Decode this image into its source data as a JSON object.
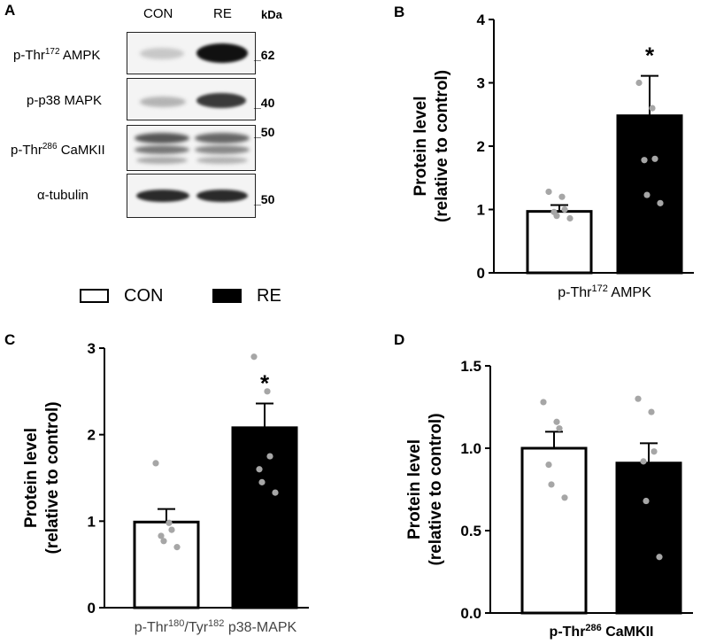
{
  "panel_a": {
    "letter": "A",
    "columns": [
      "CON",
      "RE"
    ],
    "kda_header": "kDa",
    "rows": [
      {
        "label_pre": "p-Thr",
        "label_sup": "172",
        "label_post": " AMPK",
        "kda": "_62"
      },
      {
        "label_pre": "p-p38 MAPK",
        "label_sup": "",
        "label_post": "",
        "kda": "_40"
      },
      {
        "label_pre": "p-Thr",
        "label_sup": "286",
        "label_post": " CaMKII",
        "kda": "_50"
      },
      {
        "label_pre": "α-tubulin",
        "label_sup": "",
        "label_post": "",
        "kda": "_50"
      }
    ]
  },
  "legend": {
    "con": "CON",
    "re": "RE"
  },
  "colors": {
    "con_fill": "#ffffff",
    "re_fill": "#000000",
    "dot": "#a6a6a6"
  },
  "ylabel_line1": "Protein level",
  "ylabel_line2": "(relative to control)",
  "chart_data": [
    {
      "panel": "B",
      "type": "bar",
      "categories": [
        "CON",
        "RE"
      ],
      "values": [
        0.97,
        2.48
      ],
      "errors": [
        0.1,
        0.63
      ],
      "points": [
        [
          1.28,
          1.2,
          1.0,
          0.96,
          0.9,
          0.86
        ],
        [
          3.0,
          2.6,
          1.8,
          1.78,
          1.23,
          1.1
        ]
      ],
      "ylim": [
        0,
        4
      ],
      "yticks": [
        0,
        1,
        2,
        3,
        4
      ],
      "ytick_labels": [
        "0",
        "1",
        "2",
        "3",
        "4"
      ],
      "xlabel_pre": "p-Thr",
      "xlabel_sup": "172",
      "xlabel_post": " AMPK",
      "significance": "*"
    },
    {
      "panel": "C",
      "type": "bar",
      "categories": [
        "CON",
        "RE"
      ],
      "values": [
        0.99,
        2.08
      ],
      "errors": [
        0.15,
        0.28
      ],
      "points": [
        [
          1.67,
          0.98,
          0.9,
          0.83,
          0.77,
          0.7
        ],
        [
          2.9,
          2.5,
          1.75,
          1.6,
          1.45,
          1.33
        ]
      ],
      "ylim": [
        0,
        3
      ],
      "yticks": [
        0,
        1,
        2,
        3
      ],
      "ytick_labels": [
        "0",
        "1",
        "2",
        "3"
      ],
      "xlabel_pre": "p-Thr",
      "xlabel_sup": "180",
      "xlabel_mid": "/Tyr",
      "xlabel_sup2": "182",
      "xlabel_post": " p38-MAPK",
      "significance": "*"
    },
    {
      "panel": "D",
      "type": "bar",
      "categories": [
        "CON",
        "RE"
      ],
      "values": [
        1.0,
        0.91
      ],
      "errors": [
        0.1,
        0.12
      ],
      "points": [
        [
          1.28,
          1.16,
          1.12,
          0.9,
          0.78,
          0.7
        ],
        [
          1.3,
          1.22,
          0.98,
          0.92,
          0.68,
          0.34
        ]
      ],
      "ylim": [
        0,
        1.5
      ],
      "yticks": [
        0,
        0.5,
        1.0,
        1.5
      ],
      "ytick_labels": [
        "0.0",
        "0.5",
        "1.0",
        "1.5"
      ],
      "xlabel_pre": "p-Thr",
      "xlabel_sup": "286",
      "xlabel_post": " CaMKII",
      "significance": ""
    }
  ]
}
